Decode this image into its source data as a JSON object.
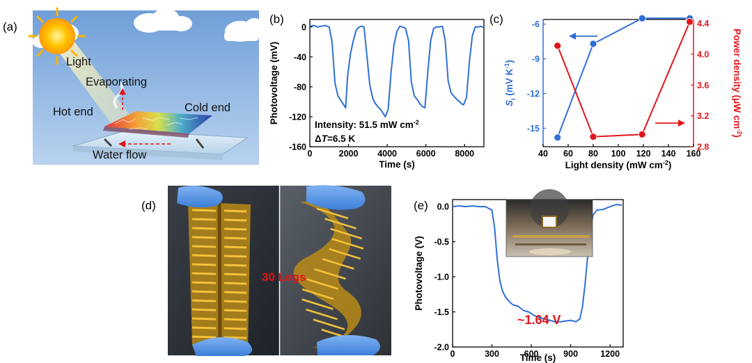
{
  "panel_labels": {
    "a": "(a)",
    "b": "(b)",
    "c": "(c)",
    "d": "(d)",
    "e": "(e)"
  },
  "schematic": {
    "light": "Light",
    "evaporating": "Evaporating",
    "hot_end": "Hot end",
    "cold_end": "Cold end",
    "water_flow": "Water flow"
  },
  "photo_d": {
    "legs": "30 Legs"
  },
  "colors": {
    "blue": "#2e6fd6",
    "red": "#e3141b",
    "annot_red": "#e3141b"
  },
  "chart_data": [
    {
      "id": "b",
      "type": "line",
      "title": "",
      "xlabel": "Time (s)",
      "ylabel": "Photovoltage (mV)",
      "xlim": [
        0,
        9000
      ],
      "ylim": [
        -160,
        10
      ],
      "xticks": [
        0,
        2000,
        4000,
        6000,
        8000
      ],
      "yticks": [
        0,
        -40,
        -80,
        -120,
        -160
      ],
      "annotations": [
        "Intensity: 51.5 mW cm",
        "-2",
        "Δ",
        "T",
        "=6.5 K"
      ],
      "series": [
        {
          "name": "photovoltage",
          "x": [
            0,
            200,
            400,
            600,
            800,
            1000,
            1150,
            1300,
            1450,
            1600,
            1750,
            1850,
            1950,
            2100,
            2250,
            2400,
            2550,
            2700,
            2800,
            2950,
            3100,
            3250,
            3350,
            3500,
            3650,
            3800,
            3900,
            4050,
            4200,
            4350,
            4500,
            4650,
            4800,
            4950,
            5100,
            5250,
            5400,
            5550,
            5700,
            5800,
            5950,
            6100,
            6250,
            6400,
            6550,
            6700,
            6850,
            7000,
            7150,
            7300,
            7500,
            7650,
            7750,
            7850,
            7950,
            8100,
            8250,
            8400,
            8550,
            8700,
            8850,
            8950
          ],
          "values": [
            1,
            2,
            0,
            1,
            2,
            0,
            -20,
            -75,
            -92,
            -98,
            -104,
            -108,
            -66,
            -36,
            -18,
            -4,
            0,
            1,
            0,
            -38,
            -78,
            -95,
            -101,
            -106,
            -110,
            -116,
            -120,
            -110,
            -60,
            -24,
            -6,
            1,
            0,
            -2,
            -18,
            -74,
            -92,
            -97,
            -103,
            -106,
            -108,
            -60,
            -18,
            -2,
            0,
            0,
            1,
            -18,
            -72,
            -88,
            -94,
            -98,
            -100,
            -103,
            -104,
            -94,
            -46,
            -12,
            0,
            0,
            1,
            -1
          ]
        }
      ]
    },
    {
      "id": "c",
      "type": "line",
      "title": "",
      "xlabel": "Light density (mW cm",
      "xlabel_sup": "-2",
      "xlabel_end": ")",
      "ylabel_left": {
        "main": "S",
        "sub": "i",
        "unit": " (mV K",
        "sup": "-1",
        "end": ")"
      },
      "ylabel_right": {
        "main": "Power density (μW cm",
        "sup": "-2",
        "end": ")"
      },
      "xlim": [
        40,
        160
      ],
      "ylim_left": [
        -16.6,
        -5.6
      ],
      "ylim_right": [
        2.8,
        4.45
      ],
      "xticks": [
        40,
        60,
        80,
        100,
        120,
        140,
        160
      ],
      "yticks_left": [
        -6,
        -9,
        -12,
        -15
      ],
      "yticks_right": [
        2.8,
        3.2,
        3.6,
        4.0,
        4.4
      ],
      "series": [
        {
          "name": "S_i",
          "axis": "left",
          "x": [
            51.5,
            80,
            119,
            157
          ],
          "values": [
            -15.8,
            -7.7,
            -5.5,
            -5.5
          ]
        },
        {
          "name": "Power density",
          "axis": "right",
          "x": [
            51.5,
            80,
            119,
            157
          ],
          "values": [
            4.11,
            2.93,
            2.96,
            4.42
          ]
        }
      ]
    },
    {
      "id": "e",
      "type": "line",
      "title": "",
      "xlabel": "Time (s)",
      "ylabel": "Photovoltage (V)",
      "xlim": [
        0,
        1300
      ],
      "ylim": [
        -2.0,
        0.1
      ],
      "xticks": [
        0,
        300,
        600,
        900,
        1200
      ],
      "yticks": [
        0.0,
        -0.5,
        -1.0,
        -1.5,
        -2.0
      ],
      "annotation": "~1.64 V",
      "series": [
        {
          "name": "photovoltage",
          "x": [
            0,
            50,
            100,
            150,
            200,
            250,
            300,
            320,
            340,
            360,
            380,
            400,
            430,
            460,
            500,
            540,
            580,
            620,
            660,
            700,
            740,
            780,
            820,
            860,
            900,
            940,
            970,
            990,
            1010,
            1030,
            1050,
            1070,
            1100,
            1150,
            1200,
            1250,
            1290
          ],
          "values": [
            0.0,
            0.01,
            0.0,
            0.01,
            0.0,
            0.0,
            -0.05,
            -0.3,
            -0.75,
            -1.05,
            -1.2,
            -1.28,
            -1.35,
            -1.4,
            -1.42,
            -1.48,
            -1.5,
            -1.55,
            -1.58,
            -1.6,
            -1.62,
            -1.64,
            -1.64,
            -1.63,
            -1.62,
            -1.64,
            -1.6,
            -1.42,
            -1.1,
            -0.7,
            -0.35,
            -0.12,
            -0.05,
            -0.04,
            0.0,
            0.03,
            0.02
          ]
        }
      ]
    }
  ]
}
